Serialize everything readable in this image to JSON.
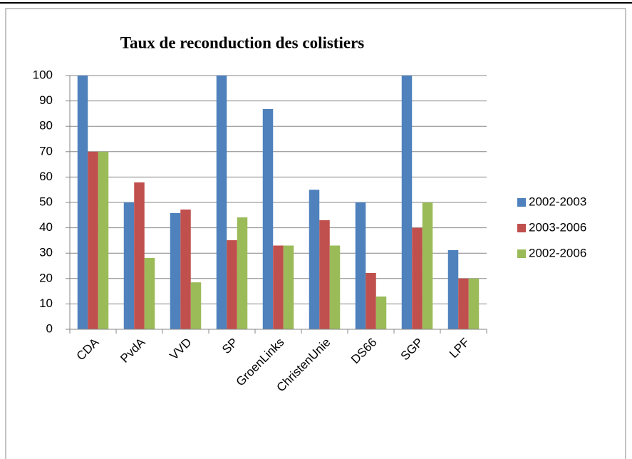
{
  "chart_data": {
    "type": "bar",
    "title": "Taux de reconduction des  colistiers",
    "categories": [
      "CDA",
      "PvdA",
      "VVD",
      "SP",
      "GroenLinks",
      "ChristenUnie",
      "DS66",
      "SGP",
      "LPF"
    ],
    "series": [
      {
        "name": "2002-2003",
        "color": "#4f81bd",
        "values": [
          100,
          50,
          45.8,
          100,
          86.8,
          55,
          50,
          100,
          31.2
        ]
      },
      {
        "name": "2003-2006",
        "color": "#c0504d",
        "values": [
          70,
          57.9,
          47.2,
          35.1,
          33,
          43,
          22.2,
          40,
          20
        ]
      },
      {
        "name": "2002-2006",
        "color": "#9bbb59",
        "values": [
          70,
          28.1,
          18.5,
          44.1,
          33,
          33,
          12.9,
          50,
          20
        ]
      }
    ],
    "ylim": [
      0,
      100
    ],
    "yticks": [
      0,
      10,
      20,
      30,
      40,
      50,
      60,
      70,
      80,
      90,
      100
    ],
    "grid": true,
    "legend": "right"
  }
}
